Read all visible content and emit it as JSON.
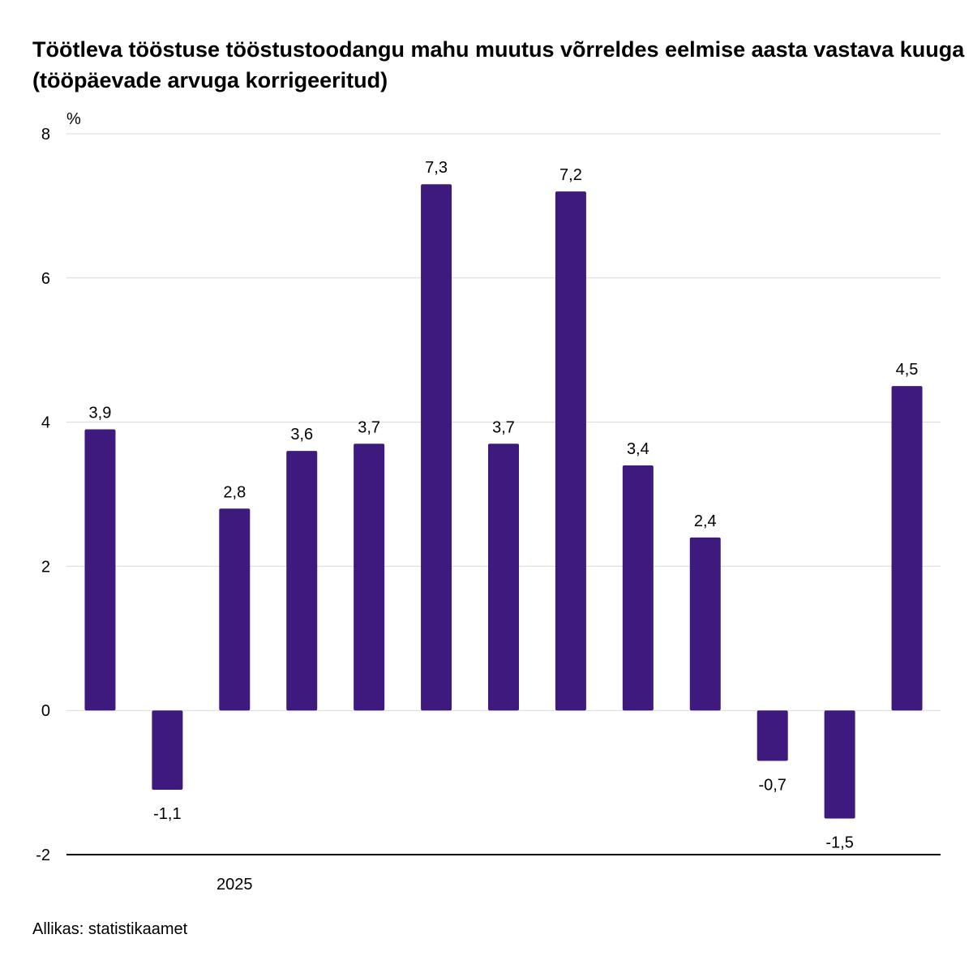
{
  "chart_data": {
    "type": "bar",
    "title": "Töötleva tööstuse tööstustoodangu mahu muutus võrreldes eelmise aasta vastava kuuga (tööpäevade arvuga korrigeeritud)",
    "ylabel": "%",
    "xlabel": "",
    "ylim": [
      -2,
      8
    ],
    "yticks": [
      "-2",
      "0",
      "2",
      "4",
      "6",
      "8"
    ],
    "grid": true,
    "x_group_label": {
      "text": "2025",
      "at_index": 2
    },
    "values": [
      3.9,
      -1.1,
      2.8,
      3.6,
      3.7,
      7.3,
      3.7,
      7.2,
      3.4,
      2.4,
      -0.7,
      -1.5,
      4.5
    ],
    "data_labels": [
      "3,9",
      "-1,1",
      "2,8",
      "3,6",
      "3,7",
      "7,3",
      "3,7",
      "7,2",
      "3,4",
      "2,4",
      "-0,7",
      "-1,5",
      "4,5"
    ],
    "bar_color": "#3e1a7e",
    "source": "Allikas: statistikaamet"
  }
}
